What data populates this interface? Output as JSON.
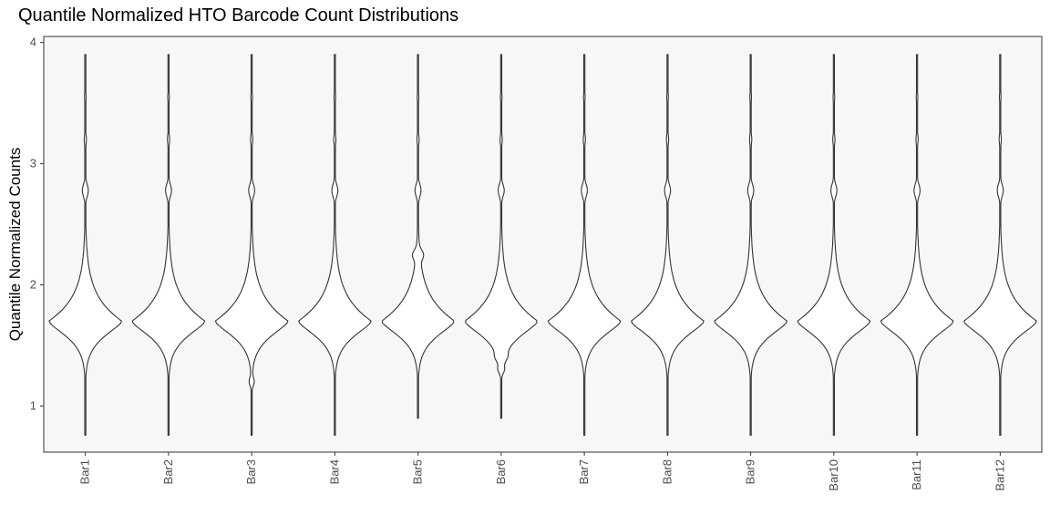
{
  "chart_data": {
    "type": "violin",
    "title": "Quantile Normalized HTO Barcode Count Distributions",
    "xlabel": "",
    "ylabel": "Quantile Normalized Counts",
    "ylim": [
      0.62,
      4.05
    ],
    "yticks": [
      1,
      2,
      3,
      4
    ],
    "grid": false,
    "legend": "none",
    "categories": [
      "Bar1",
      "Bar2",
      "Bar3",
      "Bar4",
      "Bar5",
      "Bar6",
      "Bar7",
      "Bar8",
      "Bar9",
      "Bar10",
      "Bar11",
      "Bar12"
    ],
    "series": [
      {
        "category": "Bar1",
        "min": 0.76,
        "max": 3.9,
        "peak": 1.7
      },
      {
        "category": "Bar2",
        "min": 0.76,
        "max": 3.9,
        "peak": 1.7
      },
      {
        "category": "Bar3",
        "min": 0.76,
        "max": 3.9,
        "peak": 1.7
      },
      {
        "category": "Bar4",
        "min": 0.76,
        "max": 3.9,
        "peak": 1.7
      },
      {
        "category": "Bar5",
        "min": 0.9,
        "max": 3.9,
        "peak": 1.7
      },
      {
        "category": "Bar6",
        "min": 0.9,
        "max": 3.9,
        "peak": 1.7
      },
      {
        "category": "Bar7",
        "min": 0.76,
        "max": 3.9,
        "peak": 1.7
      },
      {
        "category": "Bar8",
        "min": 0.76,
        "max": 3.9,
        "peak": 1.7
      },
      {
        "category": "Bar9",
        "min": 0.76,
        "max": 3.9,
        "peak": 1.7
      },
      {
        "category": "Bar10",
        "min": 0.76,
        "max": 3.9,
        "peak": 1.7
      },
      {
        "category": "Bar11",
        "min": 0.76,
        "max": 3.9,
        "peak": 1.7
      },
      {
        "category": "Bar12",
        "min": 0.76,
        "max": 3.9,
        "peak": 1.7
      }
    ],
    "colors": {
      "panel_background": "#f7f7f7",
      "panel_border": "#333333",
      "violin_fill": "#ffffff",
      "violin_stroke": "#333333"
    }
  }
}
